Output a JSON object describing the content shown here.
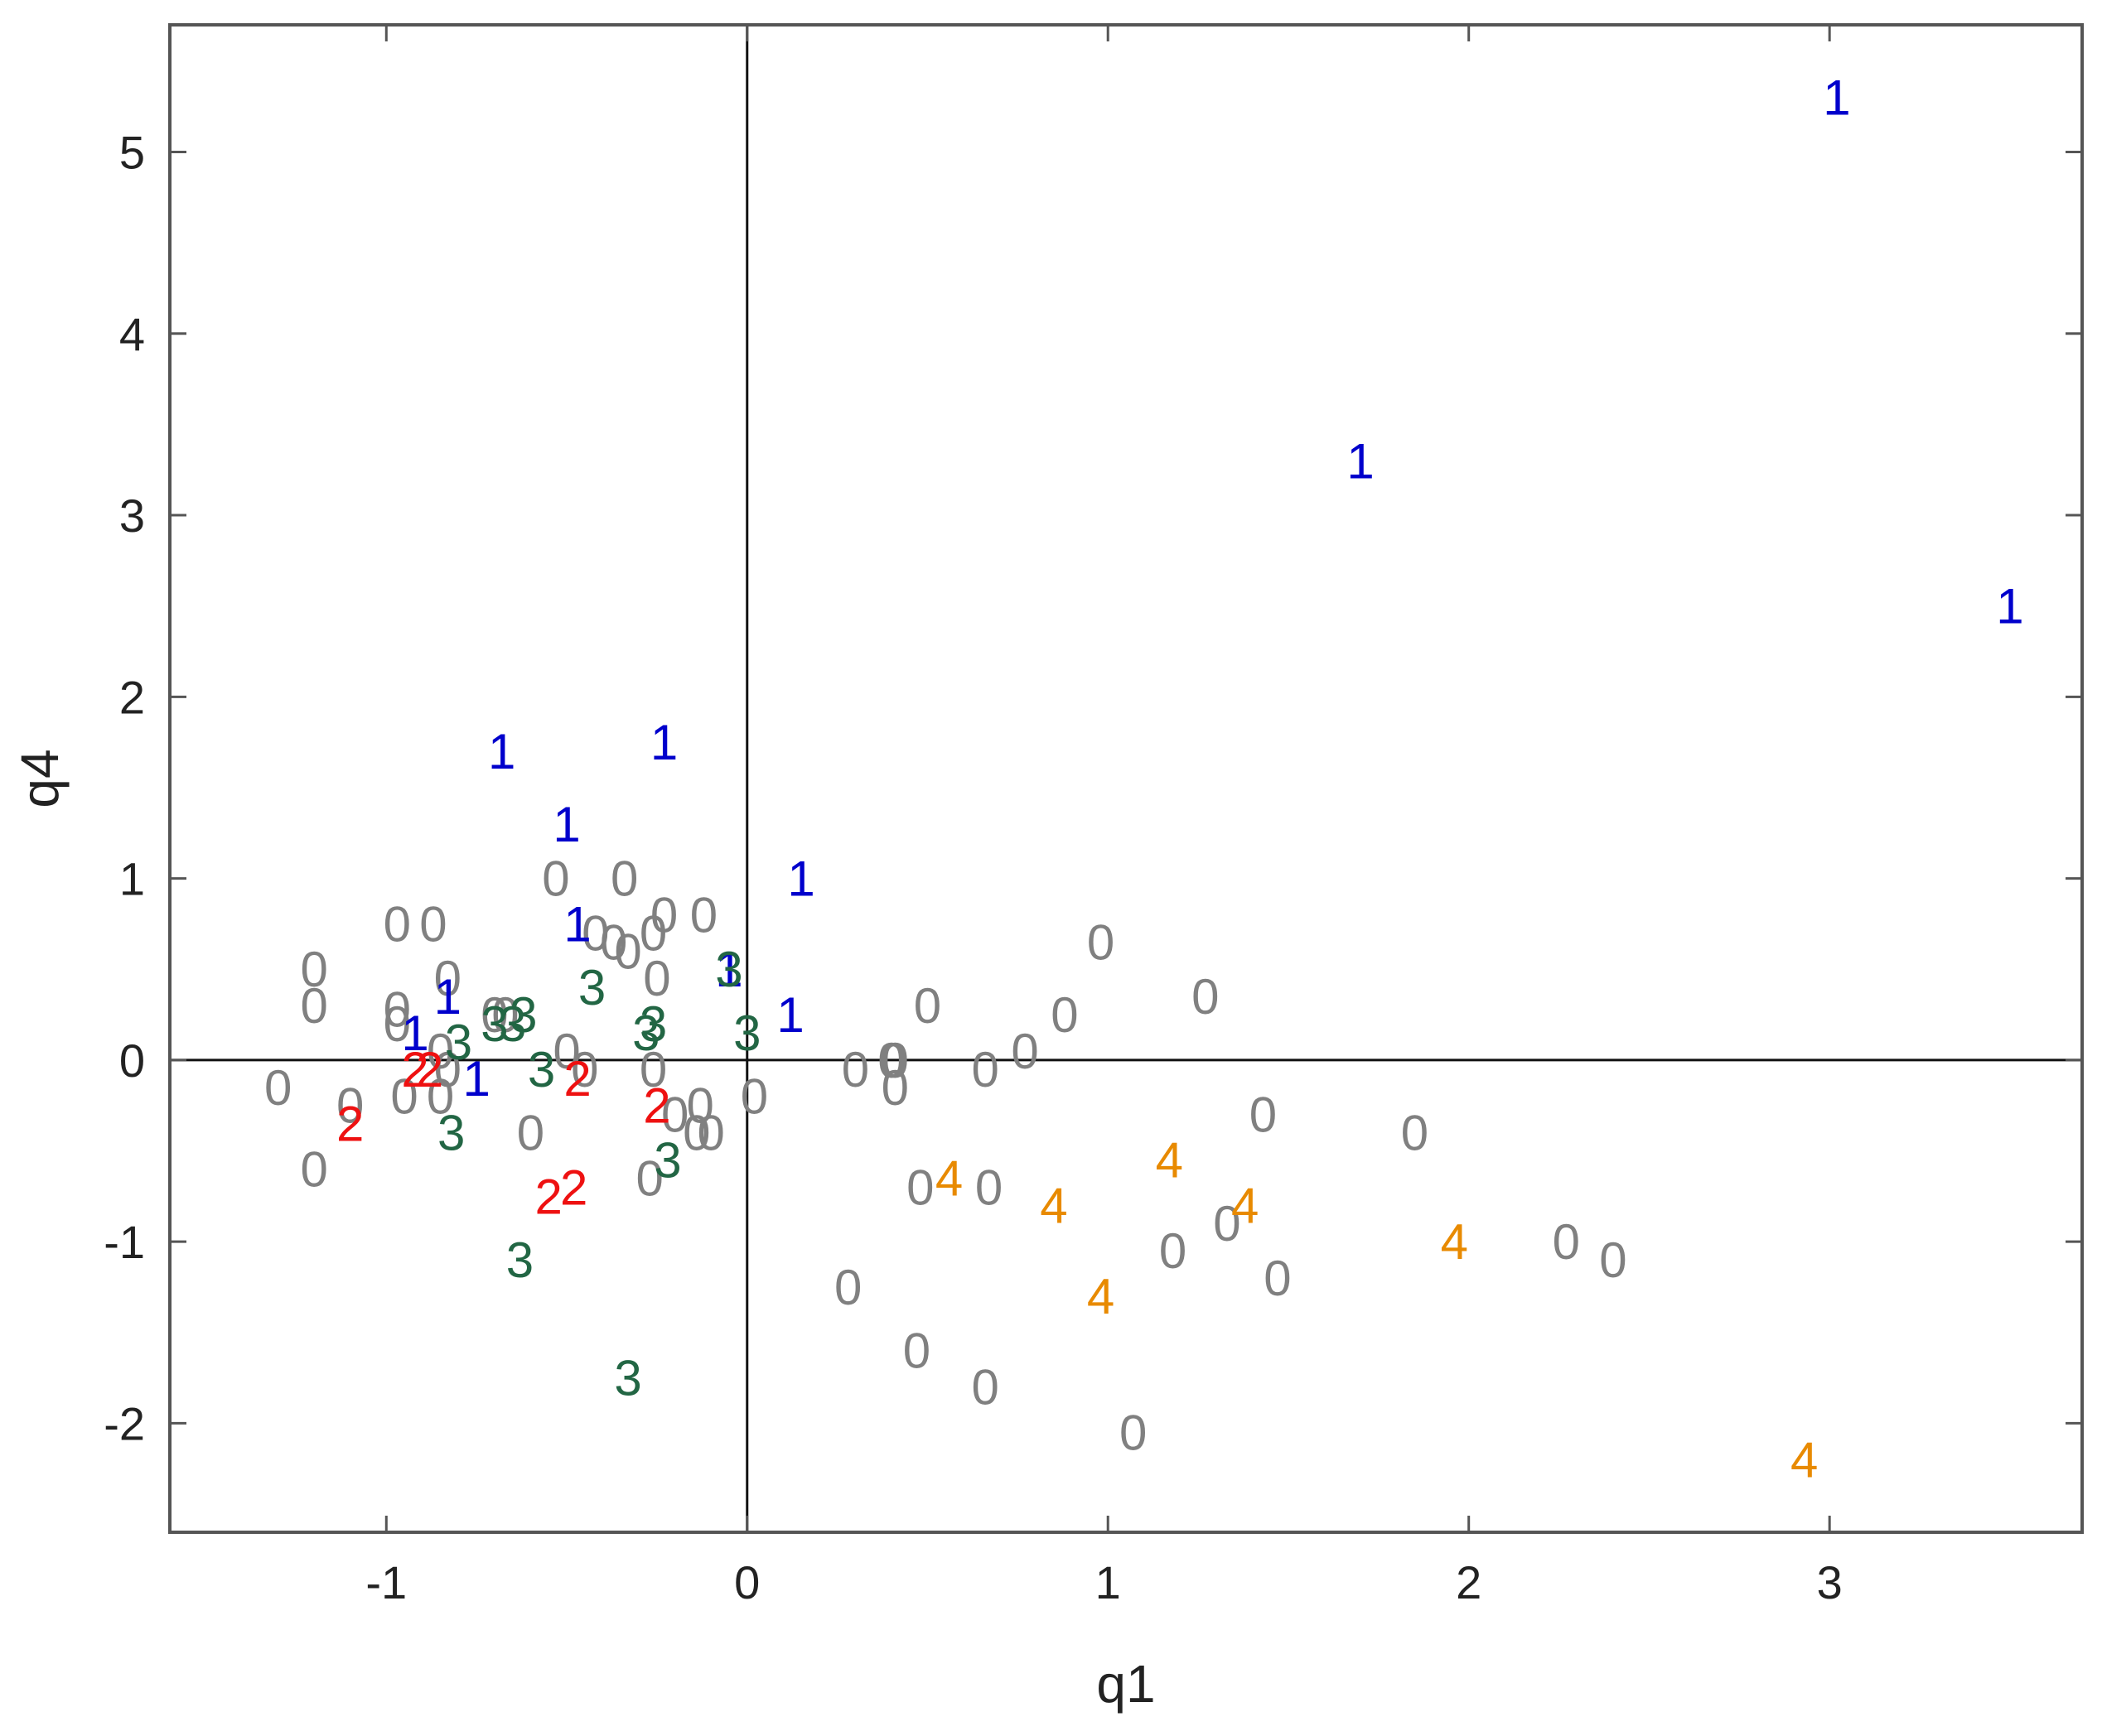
{
  "chart_data": {
    "type": "scatter",
    "title": "",
    "xlabel": "q1",
    "ylabel": "q4",
    "xlim": [
      -1.6,
      3.7
    ],
    "ylim": [
      -2.6,
      5.7
    ],
    "xticks": [
      -1,
      0,
      1,
      2,
      3
    ],
    "yticks": [
      -2,
      -1,
      0,
      1,
      2,
      3,
      4,
      5
    ],
    "xtick_labels": [
      "-1",
      "0",
      "1",
      "2",
      "3"
    ],
    "ytick_labels": [
      "-2",
      "-1",
      "0",
      "1",
      "2",
      "3",
      "4",
      "5"
    ],
    "grid": false,
    "reference_lines": {
      "x": 0,
      "y": 0
    },
    "marker_style": "text glyph of group id",
    "series": [
      {
        "label": "0",
        "color": "#808080",
        "points": [
          [
            -1.3,
            -0.15
          ],
          [
            -1.2,
            0.5
          ],
          [
            -1.2,
            0.3
          ],
          [
            -1.2,
            -0.6
          ],
          [
            -1.1,
            -0.25
          ],
          [
            -0.97,
            0.75
          ],
          [
            -0.97,
            0.28
          ],
          [
            -0.97,
            0.2
          ],
          [
            -0.95,
            -0.2
          ],
          [
            -0.87,
            0.75
          ],
          [
            -0.85,
            0.05
          ],
          [
            -0.85,
            -0.2
          ],
          [
            -0.83,
            0.45
          ],
          [
            -0.83,
            -0.05
          ],
          [
            -0.7,
            0.25
          ],
          [
            -0.67,
            0.25
          ],
          [
            -0.6,
            -0.4
          ],
          [
            -0.53,
            1.0
          ],
          [
            -0.5,
            0.05
          ],
          [
            -0.45,
            -0.05
          ],
          [
            -0.42,
            0.7
          ],
          [
            -0.37,
            0.65
          ],
          [
            -0.34,
            1.0
          ],
          [
            -0.33,
            0.6
          ],
          [
            -0.26,
            0.7
          ],
          [
            -0.26,
            -0.05
          ],
          [
            -0.27,
            -0.65
          ],
          [
            -0.25,
            0.45
          ],
          [
            -0.23,
            0.8
          ],
          [
            -0.2,
            -0.3
          ],
          [
            -0.14,
            -0.4
          ],
          [
            -0.13,
            -0.25
          ],
          [
            -0.12,
            0.8
          ],
          [
            -0.1,
            -0.4
          ],
          [
            0.02,
            -0.2
          ],
          [
            0.3,
            -0.05
          ],
          [
            0.28,
            -1.25
          ],
          [
            0.4,
            0.0
          ],
          [
            0.41,
            -0.15
          ],
          [
            0.41,
            0.0
          ],
          [
            0.48,
            -0.7
          ],
          [
            0.47,
            -1.6
          ],
          [
            0.5,
            0.3
          ],
          [
            0.66,
            -0.05
          ],
          [
            0.66,
            -1.8
          ],
          [
            0.67,
            -0.7
          ],
          [
            0.77,
            0.05
          ],
          [
            0.88,
            0.25
          ],
          [
            0.98,
            0.65
          ],
          [
            1.07,
            -2.05
          ],
          [
            1.18,
            -1.05
          ],
          [
            1.27,
            0.35
          ],
          [
            1.33,
            -0.9
          ],
          [
            1.43,
            -0.3
          ],
          [
            1.47,
            -1.2
          ],
          [
            1.85,
            -0.4
          ],
          [
            2.27,
            -1.0
          ],
          [
            2.4,
            -1.1
          ]
        ]
      },
      {
        "label": "1",
        "color": "#0000cc",
        "points": [
          [
            -0.92,
            0.15
          ],
          [
            -0.83,
            0.35
          ],
          [
            -0.75,
            -0.1
          ],
          [
            -0.68,
            1.7
          ],
          [
            -0.5,
            1.3
          ],
          [
            -0.47,
            0.75
          ],
          [
            -0.23,
            1.75
          ],
          [
            -0.05,
            0.5
          ],
          [
            0.12,
            0.25
          ],
          [
            0.15,
            1.0
          ],
          [
            1.7,
            3.3
          ],
          [
            3.02,
            5.3
          ],
          [
            3.5,
            2.5
          ]
        ]
      },
      {
        "label": "2",
        "color": "#ee1111",
        "points": [
          [
            -1.1,
            -0.35
          ],
          [
            -0.92,
            -0.05
          ],
          [
            -0.88,
            -0.05
          ],
          [
            -0.55,
            -0.75
          ],
          [
            -0.48,
            -0.7
          ],
          [
            -0.47,
            -0.1
          ],
          [
            -0.25,
            -0.25
          ]
        ]
      },
      {
        "label": "3",
        "color": "#226644",
        "points": [
          [
            -0.8,
            0.1
          ],
          [
            -0.82,
            -0.4
          ],
          [
            -0.7,
            0.2
          ],
          [
            -0.65,
            0.2
          ],
          [
            -0.62,
            0.25
          ],
          [
            -0.63,
            -1.1
          ],
          [
            -0.57,
            -0.05
          ],
          [
            -0.43,
            0.4
          ],
          [
            -0.28,
            0.15
          ],
          [
            -0.26,
            0.2
          ],
          [
            -0.22,
            -0.55
          ],
          [
            -0.33,
            -1.75
          ],
          [
            -0.05,
            0.5
          ],
          [
            0.0,
            0.15
          ]
        ]
      },
      {
        "label": "4",
        "color": "#e88a00",
        "points": [
          [
            0.56,
            -0.65
          ],
          [
            0.85,
            -0.8
          ],
          [
            0.98,
            -1.3
          ],
          [
            1.17,
            -0.55
          ],
          [
            1.38,
            -0.8
          ],
          [
            1.96,
            -1.0
          ],
          [
            2.93,
            -2.2
          ]
        ]
      }
    ]
  }
}
